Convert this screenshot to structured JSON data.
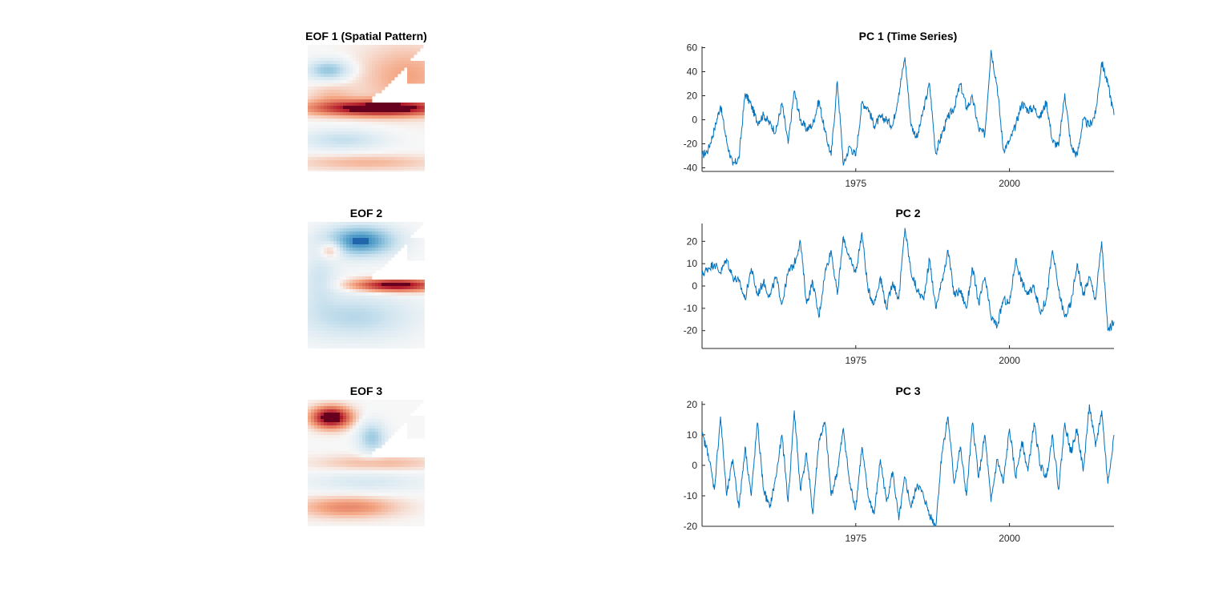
{
  "colors": {
    "series": "#0072BD",
    "axis": "#262626",
    "warm": "#67001f",
    "cool": "#1f6fb4"
  },
  "maps": [
    {
      "title": "EOF 1 (Spatial Pattern)",
      "pattern": "eof1"
    },
    {
      "title": "EOF 2",
      "pattern": "eof2"
    },
    {
      "title": "EOF 3",
      "pattern": "eof3"
    }
  ],
  "chart_data": [
    {
      "type": "line",
      "title": "PC 1 (Time Series)",
      "xlim": [
        1950,
        2017
      ],
      "ylim": [
        -43,
        61
      ],
      "xticks": [
        1975,
        2000
      ],
      "yticks": [
        -40,
        -20,
        0,
        20,
        40,
        60
      ],
      "series": [
        {
          "values": [
            [
              1950,
              -30
            ],
            [
              1951,
              -25
            ],
            [
              1952,
              -8
            ],
            [
              1953,
              12
            ],
            [
              1954,
              -18
            ],
            [
              1955,
              -38
            ],
            [
              1956,
              -32
            ],
            [
              1957,
              22
            ],
            [
              1958,
              12
            ],
            [
              1959,
              -2
            ],
            [
              1960,
              4
            ],
            [
              1961,
              -3
            ],
            [
              1962,
              -10
            ],
            [
              1963,
              14
            ],
            [
              1964,
              -20
            ],
            [
              1965,
              24
            ],
            [
              1966,
              0
            ],
            [
              1967,
              -8
            ],
            [
              1968,
              -4
            ],
            [
              1969,
              16
            ],
            [
              1970,
              -10
            ],
            [
              1971,
              -30
            ],
            [
              1972,
              32
            ],
            [
              1973,
              -38
            ],
            [
              1974,
              -22
            ],
            [
              1975,
              -30
            ],
            [
              1976,
              14
            ],
            [
              1977,
              10
            ],
            [
              1978,
              -5
            ],
            [
              1979,
              2
            ],
            [
              1980,
              0
            ],
            [
              1981,
              -5
            ],
            [
              1982,
              22
            ],
            [
              1983,
              52
            ],
            [
              1984,
              -5
            ],
            [
              1985,
              -15
            ],
            [
              1986,
              8
            ],
            [
              1987,
              30
            ],
            [
              1988,
              -28
            ],
            [
              1989,
              -12
            ],
            [
              1990,
              2
            ],
            [
              1991,
              10
            ],
            [
              1992,
              30
            ],
            [
              1993,
              10
            ],
            [
              1994,
              18
            ],
            [
              1995,
              -8
            ],
            [
              1996,
              -12
            ],
            [
              1997,
              58
            ],
            [
              1998,
              28
            ],
            [
              1999,
              -25
            ],
            [
              2000,
              -18
            ],
            [
              2001,
              -5
            ],
            [
              2002,
              14
            ],
            [
              2003,
              8
            ],
            [
              2004,
              10
            ],
            [
              2005,
              2
            ],
            [
              2006,
              15
            ],
            [
              2007,
              -18
            ],
            [
              2008,
              -22
            ],
            [
              2009,
              22
            ],
            [
              2010,
              -22
            ],
            [
              2011,
              -30
            ],
            [
              2012,
              0
            ],
            [
              2013,
              -5
            ],
            [
              2014,
              5
            ],
            [
              2015,
              48
            ],
            [
              2016,
              30
            ],
            [
              2017,
              4
            ]
          ]
        }
      ]
    },
    {
      "type": "line",
      "title": "PC 2",
      "xlim": [
        1950,
        2017
      ],
      "ylim": [
        -28,
        28
      ],
      "xticks": [
        1975,
        2000
      ],
      "yticks": [
        -20,
        -10,
        0,
        10,
        20
      ],
      "series": [
        {
          "values": [
            [
              1950,
              5
            ],
            [
              1951,
              8
            ],
            [
              1952,
              10
            ],
            [
              1953,
              6
            ],
            [
              1954,
              12
            ],
            [
              1955,
              4
            ],
            [
              1956,
              2
            ],
            [
              1957,
              -6
            ],
            [
              1958,
              8
            ],
            [
              1959,
              -4
            ],
            [
              1960,
              2
            ],
            [
              1961,
              -5
            ],
            [
              1962,
              4
            ],
            [
              1963,
              -8
            ],
            [
              1964,
              6
            ],
            [
              1965,
              10
            ],
            [
              1966,
              20
            ],
            [
              1967,
              -8
            ],
            [
              1968,
              2
            ],
            [
              1969,
              -14
            ],
            [
              1970,
              6
            ],
            [
              1971,
              16
            ],
            [
              1972,
              -4
            ],
            [
              1973,
              22
            ],
            [
              1974,
              12
            ],
            [
              1975,
              6
            ],
            [
              1976,
              24
            ],
            [
              1977,
              -2
            ],
            [
              1978,
              -8
            ],
            [
              1979,
              4
            ],
            [
              1980,
              -10
            ],
            [
              1981,
              2
            ],
            [
              1982,
              -6
            ],
            [
              1983,
              26
            ],
            [
              1984,
              6
            ],
            [
              1985,
              -2
            ],
            [
              1986,
              -6
            ],
            [
              1987,
              12
            ],
            [
              1988,
              -10
            ],
            [
              1989,
              2
            ],
            [
              1990,
              16
            ],
            [
              1991,
              -4
            ],
            [
              1992,
              -2
            ],
            [
              1993,
              -10
            ],
            [
              1994,
              8
            ],
            [
              1995,
              -8
            ],
            [
              1996,
              4
            ],
            [
              1997,
              -14
            ],
            [
              1998,
              -18
            ],
            [
              1999,
              -6
            ],
            [
              2000,
              -8
            ],
            [
              2001,
              12
            ],
            [
              2002,
              2
            ],
            [
              2003,
              -4
            ],
            [
              2004,
              0
            ],
            [
              2005,
              -12
            ],
            [
              2006,
              -6
            ],
            [
              2007,
              16
            ],
            [
              2008,
              -2
            ],
            [
              2009,
              -14
            ],
            [
              2010,
              -8
            ],
            [
              2011,
              10
            ],
            [
              2012,
              -4
            ],
            [
              2013,
              4
            ],
            [
              2014,
              -6
            ],
            [
              2015,
              20
            ],
            [
              2016,
              -20
            ],
            [
              2017,
              -16
            ]
          ]
        }
      ]
    },
    {
      "type": "line",
      "title": "PC 3",
      "xlim": [
        1950,
        2017
      ],
      "ylim": [
        -20,
        21
      ],
      "xticks": [
        1975,
        2000
      ],
      "yticks": [
        -20,
        -10,
        0,
        10,
        20
      ],
      "series": [
        {
          "values": [
            [
              1950,
              10
            ],
            [
              1951,
              4
            ],
            [
              1952,
              -8
            ],
            [
              1953,
              16
            ],
            [
              1954,
              -10
            ],
            [
              1955,
              2
            ],
            [
              1956,
              -14
            ],
            [
              1957,
              6
            ],
            [
              1958,
              -10
            ],
            [
              1959,
              14
            ],
            [
              1960,
              -8
            ],
            [
              1961,
              -14
            ],
            [
              1962,
              -4
            ],
            [
              1963,
              10
            ],
            [
              1964,
              -12
            ],
            [
              1965,
              18
            ],
            [
              1966,
              -8
            ],
            [
              1967,
              4
            ],
            [
              1968,
              -16
            ],
            [
              1969,
              8
            ],
            [
              1970,
              14
            ],
            [
              1971,
              -10
            ],
            [
              1972,
              -2
            ],
            [
              1973,
              12
            ],
            [
              1974,
              -6
            ],
            [
              1975,
              -14
            ],
            [
              1976,
              6
            ],
            [
              1977,
              -10
            ],
            [
              1978,
              -16
            ],
            [
              1979,
              2
            ],
            [
              1980,
              -12
            ],
            [
              1981,
              -2
            ],
            [
              1982,
              -18
            ],
            [
              1983,
              -4
            ],
            [
              1984,
              -14
            ],
            [
              1985,
              -6
            ],
            [
              1986,
              -10
            ],
            [
              1987,
              -16
            ],
            [
              1988,
              -20
            ],
            [
              1989,
              4
            ],
            [
              1990,
              16
            ],
            [
              1991,
              -6
            ],
            [
              1992,
              6
            ],
            [
              1993,
              -10
            ],
            [
              1994,
              14
            ],
            [
              1995,
              -4
            ],
            [
              1996,
              10
            ],
            [
              1997,
              -12
            ],
            [
              1998,
              2
            ],
            [
              1999,
              -6
            ],
            [
              2000,
              12
            ],
            [
              2001,
              -4
            ],
            [
              2002,
              8
            ],
            [
              2003,
              -2
            ],
            [
              2004,
              14
            ],
            [
              2005,
              0
            ],
            [
              2006,
              -4
            ],
            [
              2007,
              10
            ],
            [
              2008,
              -8
            ],
            [
              2009,
              14
            ],
            [
              2010,
              4
            ],
            [
              2011,
              12
            ],
            [
              2012,
              -2
            ],
            [
              2013,
              20
            ],
            [
              2014,
              6
            ],
            [
              2015,
              18
            ],
            [
              2016,
              -6
            ],
            [
              2017,
              10
            ]
          ]
        }
      ]
    }
  ]
}
